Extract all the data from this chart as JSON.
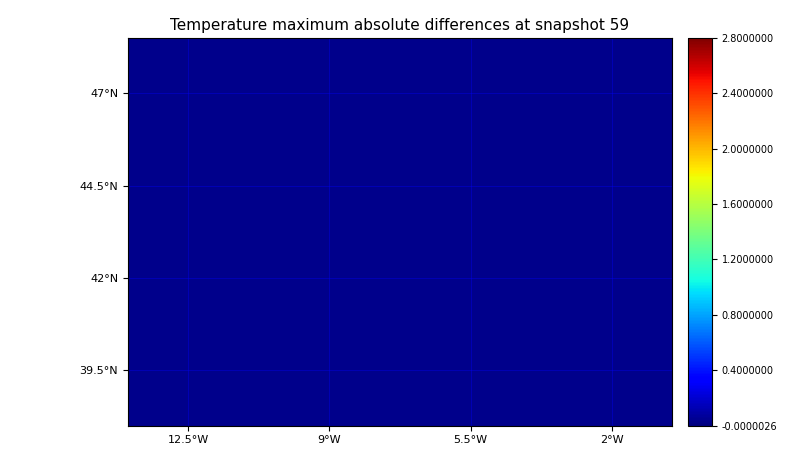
{
  "title": "Temperature maximum absolute differences at snapshot 59",
  "lon_min": -14.0,
  "lon_max": -0.5,
  "lat_min": 38.0,
  "lat_max": 48.5,
  "xticks": [
    -12.5,
    -9.0,
    -5.5,
    -2.0
  ],
  "yticks": [
    39.5,
    42.0,
    44.5,
    47.0
  ],
  "xtick_labels": [
    "12.5°W",
    "9°W",
    "5.5°W",
    "2°W"
  ],
  "ytick_labels": [
    "39.5°N",
    "42°N",
    "44.5°N",
    "47°N"
  ],
  "cmap": "jet",
  "vmin": -2.6e-06,
  "vmax": 2.8,
  "colorbar_ticks": [
    2.8,
    2.4,
    2.0,
    1.6,
    1.2,
    0.8,
    0.4,
    -2.6e-06
  ],
  "colorbar_tick_labels": [
    "2.8000000",
    "2.4000000",
    "2.0000000",
    "1.6000000",
    "1.2000000",
    "0.8000000",
    "0.4000000",
    "-0.0000026"
  ],
  "land_color": "#c8c8c8",
  "ocean_color": "#00008B",
  "diff_region_lon_min": -5.0,
  "diff_region_lon_max": -0.5,
  "diff_region_lat_min": 43.5,
  "diff_region_lat_max": 48.5,
  "background_color": "white",
  "title_fontsize": 11
}
